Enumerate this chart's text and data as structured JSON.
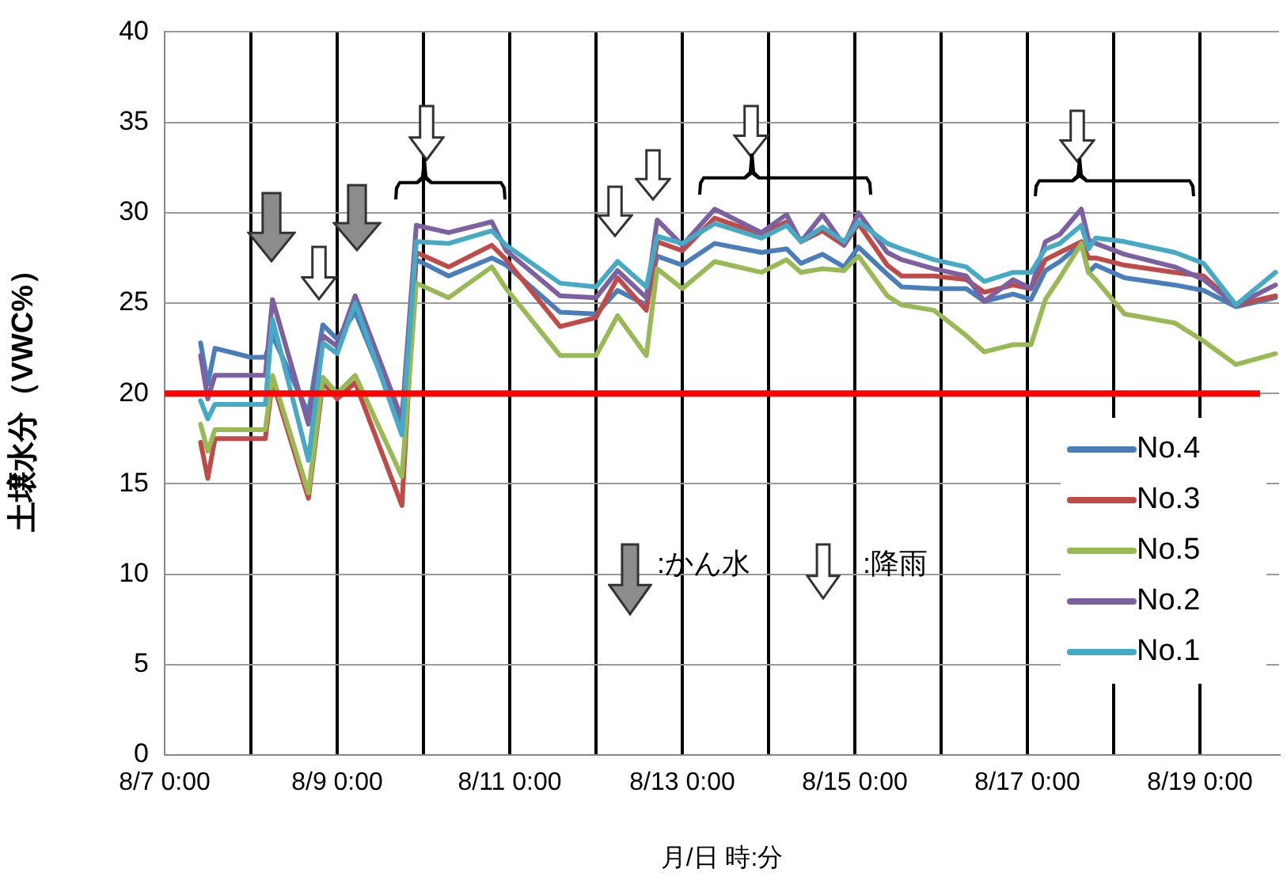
{
  "chart_data": {
    "type": "line",
    "xlabel": "月/日 時:分",
    "ylabel": "土壌水分（VWC%）",
    "x": [
      "--08-07T10:00",
      "--08-07T12:00",
      "--08-07T14:00",
      "--08-08T00:00",
      "--08-08T04:00",
      "--08-08T06:00",
      "--08-08T16:00",
      "--08-08T20:00",
      "--08-09T00:00",
      "--08-09T05:00",
      "--08-09T18:00",
      "--08-09T22:00",
      "--08-10T07:00",
      "--08-10T19:00",
      "--08-10T23:00",
      "--08-11T14:00",
      "--08-12T00:00",
      "--08-12T06:00",
      "--08-12T14:00",
      "--08-12T17:00",
      "--08-13T00:00",
      "--08-13T09:00",
      "--08-13T22:00",
      "--08-14T05:00",
      "--08-14T09:00",
      "--08-14T15:00",
      "--08-14T21:00",
      "--08-15T01:00",
      "--08-15T09:00",
      "--08-15T13:00",
      "--08-15T22:00",
      "--08-16T07:00",
      "--08-16T12:00",
      "--08-16T20:00",
      "--08-17T01:00",
      "--08-17T05:00",
      "--08-17T09:00",
      "--08-17T15:00",
      "--08-17T17:00",
      "--08-17T19:00",
      "--08-18T03:00",
      "--08-18T17:00",
      "--08-19T01:00",
      "--08-19T10:00",
      "--08-19T21:00"
    ],
    "series": [
      {
        "name": "No.4",
        "color": "#4a7ebb",
        "values": [
          22.8,
          20.5,
          22.5,
          22.0,
          22.0,
          23.2,
          18.9,
          23.8,
          23.0,
          24.5,
          18.2,
          27.4,
          26.5,
          27.5,
          27.1,
          24.5,
          24.4,
          25.7,
          24.9,
          27.6,
          27.1,
          28.3,
          27.8,
          28.0,
          27.2,
          27.7,
          27.0,
          28.1,
          26.6,
          25.9,
          25.8,
          25.8,
          25.1,
          25.5,
          25.2,
          26.8,
          27.3,
          28.3,
          26.7,
          27.1,
          26.4,
          26.0,
          25.7,
          24.8,
          25.3
        ]
      },
      {
        "name": "No.3",
        "color": "#be4b48",
        "values": [
          17.3,
          15.3,
          17.5,
          17.5,
          17.5,
          20.7,
          14.2,
          20.6,
          19.7,
          20.6,
          13.8,
          27.8,
          27.0,
          28.2,
          27.4,
          23.7,
          24.2,
          26.4,
          24.6,
          28.4,
          27.9,
          29.7,
          28.8,
          29.5,
          28.4,
          29.0,
          28.2,
          29.4,
          27.1,
          26.5,
          26.5,
          26.3,
          25.6,
          26.0,
          25.8,
          27.4,
          27.8,
          28.4,
          27.5,
          27.5,
          27.1,
          26.7,
          26.5,
          24.9,
          25.4
        ]
      },
      {
        "name": "No.5",
        "color": "#98b954",
        "values": [
          18.3,
          16.8,
          18.0,
          18.0,
          18.0,
          21.0,
          14.5,
          20.9,
          20.0,
          21.0,
          15.4,
          26.1,
          25.3,
          27.0,
          25.8,
          22.1,
          22.1,
          24.3,
          22.1,
          26.9,
          25.8,
          27.3,
          26.7,
          27.4,
          26.7,
          26.9,
          26.8,
          27.6,
          25.4,
          24.9,
          24.6,
          23.2,
          22.3,
          22.7,
          22.7,
          25.2,
          26.4,
          28.3,
          26.7,
          26.3,
          24.4,
          23.9,
          22.9,
          21.6,
          22.2
        ]
      },
      {
        "name": "No.2",
        "color": "#7d60a0",
        "values": [
          22.1,
          19.7,
          21.0,
          21.0,
          21.0,
          25.2,
          18.3,
          23.2,
          22.6,
          25.4,
          18.6,
          29.3,
          28.9,
          29.5,
          27.9,
          25.4,
          25.3,
          26.8,
          25.3,
          29.6,
          28.2,
          30.2,
          28.9,
          29.9,
          28.4,
          29.9,
          28.2,
          30.0,
          27.8,
          27.4,
          26.9,
          26.5,
          25.1,
          26.3,
          25.8,
          28.4,
          28.8,
          30.2,
          28.5,
          28.3,
          27.7,
          27.0,
          26.3,
          24.9,
          26.0
        ]
      },
      {
        "name": "No.1",
        "color": "#46aac5",
        "values": [
          19.6,
          18.6,
          19.4,
          19.4,
          19.4,
          24.1,
          16.3,
          22.8,
          22.2,
          25.0,
          17.7,
          28.4,
          28.3,
          29.0,
          28.2,
          26.1,
          25.9,
          27.3,
          25.9,
          28.7,
          28.3,
          29.4,
          28.6,
          29.3,
          28.4,
          29.2,
          28.4,
          29.5,
          28.3,
          28.0,
          27.4,
          27.0,
          26.2,
          26.7,
          26.7,
          28.0,
          28.3,
          29.3,
          28.0,
          28.6,
          28.4,
          27.8,
          27.2,
          24.9,
          26.7
        ]
      }
    ],
    "xlim": [
      "--08-07T00:00",
      "--08-19T22:00"
    ],
    "xticks": [
      {
        "value": "--08-07T00:00",
        "label": "8/7 0:00"
      },
      {
        "value": "--08-08T00:00",
        "label": null
      },
      {
        "value": "--08-09T00:00",
        "label": "8/9 0:00"
      },
      {
        "value": "--08-10T00:00",
        "label": null
      },
      {
        "value": "--08-11T00:00",
        "label": "8/11 0:00"
      },
      {
        "value": "--08-12T00:00",
        "label": null
      },
      {
        "value": "--08-13T00:00",
        "label": "8/13 0:00"
      },
      {
        "value": "--08-14T00:00",
        "label": null
      },
      {
        "value": "--08-15T00:00",
        "label": "8/15 0:00"
      },
      {
        "value": "--08-16T00:00",
        "label": null
      },
      {
        "value": "--08-17T00:00",
        "label": "8/17 0:00"
      },
      {
        "value": "--08-18T00:00",
        "label": null
      },
      {
        "value": "--08-19T00:00",
        "label": "8/19 0:00"
      }
    ],
    "ylim": [
      0,
      40
    ],
    "yticks": [
      0,
      5,
      10,
      15,
      20,
      25,
      30,
      35,
      40
    ],
    "ref_lines": [
      {
        "axis": "y",
        "value": 20,
        "label": null,
        "color": "#ff0000"
      }
    ],
    "annotations": [
      ":かん水",
      ":降雨"
    ],
    "grid": true,
    "legend": "bottom right",
    "line_style": "solid"
  }
}
